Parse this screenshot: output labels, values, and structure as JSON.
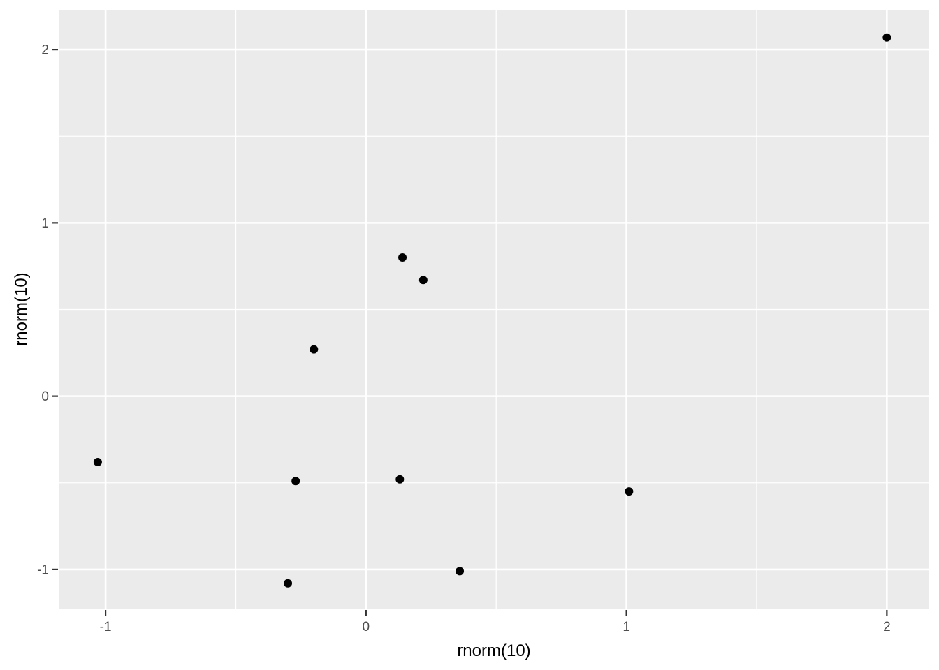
{
  "chart_data": {
    "type": "scatter",
    "title": "",
    "xlabel": "rnorm(10)",
    "ylabel": "rnorm(10)",
    "points": [
      {
        "x": -1.03,
        "y": -0.38
      },
      {
        "x": 0.14,
        "y": 0.8
      },
      {
        "x": 0.22,
        "y": 0.67
      },
      {
        "x": -0.2,
        "y": 0.27
      },
      {
        "x": -0.27,
        "y": -0.49
      },
      {
        "x": 0.13,
        "y": -0.48
      },
      {
        "x": 1.01,
        "y": -0.55
      },
      {
        "x": -0.3,
        "y": -1.08
      },
      {
        "x": 0.36,
        "y": -1.01
      },
      {
        "x": 2.0,
        "y": 2.07
      }
    ],
    "xlim": [
      -1.18,
      2.16
    ],
    "ylim": [
      -1.23,
      2.23
    ],
    "xticks": [
      -1,
      0,
      1,
      2
    ],
    "yticks": [
      -1,
      0,
      1,
      2
    ],
    "xtick_labels": [
      "-1",
      "0",
      "1",
      "2"
    ],
    "ytick_labels": [
      "-1",
      "0",
      "1",
      "2"
    ],
    "legend": "none",
    "grid": {
      "major": true,
      "minor": true
    },
    "style": {
      "panel_bg": "#EBEBEB",
      "grid_color": "#FFFFFF",
      "point_color": "#000000",
      "tick_mark_color": "#333333",
      "tick_label_color": "#4D4D4D",
      "axis_title_color": "#000000",
      "figure_bg": "#FFFFFF"
    }
  }
}
